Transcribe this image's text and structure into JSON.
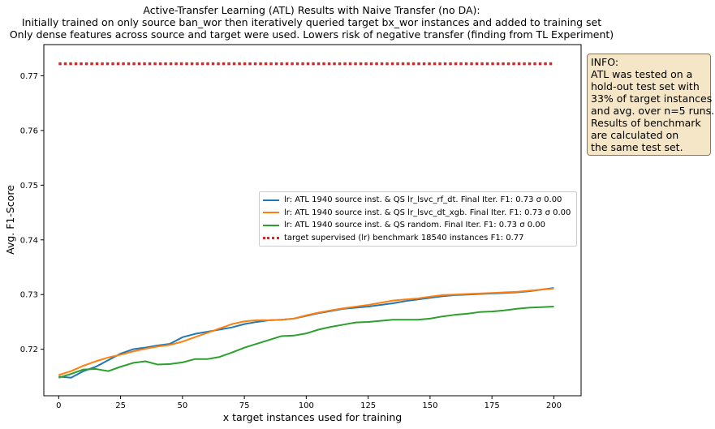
{
  "chart_data": {
    "type": "line",
    "title_lines": [
      "Active-Transfer Learning (ATL) Results with Naive Transfer (no DA):",
      "Initially trained on only source ban_wor then iteratively queried target bx_wor instances and added to training set",
      "Only dense features across source and target were used. Lowers risk of negative transfer (finding from TL Experiment)"
    ],
    "xlabel": "x target instances used for training",
    "ylabel": "Avg. F1-Score",
    "xlim": [
      -6,
      211
    ],
    "ylim": [
      0.7115,
      0.7757
    ],
    "xticks": [
      0,
      25,
      50,
      75,
      100,
      125,
      150,
      175,
      200
    ],
    "xtick_labels": [
      "0",
      "25",
      "50",
      "75",
      "100",
      "125",
      "150",
      "175",
      "200"
    ],
    "yticks": [
      0.72,
      0.73,
      0.74,
      0.75,
      0.76,
      0.77
    ],
    "ytick_labels": [
      "0.72",
      "0.73",
      "0.74",
      "0.75",
      "0.76",
      "0.77"
    ],
    "grid": false,
    "legend_position": "center-right",
    "x": [
      0,
      5,
      10,
      15,
      20,
      25,
      30,
      35,
      40,
      45,
      50,
      55,
      60,
      65,
      70,
      75,
      80,
      85,
      90,
      95,
      100,
      105,
      110,
      115,
      120,
      125,
      130,
      135,
      140,
      145,
      150,
      155,
      160,
      165,
      170,
      175,
      180,
      185,
      190,
      195,
      200
    ],
    "series": [
      {
        "name": "lr: ATL 1940 source inst. & QS lr_lsvc_rf_dt. Final Iter. F1: 0.73 σ 0.00",
        "color": "#1f77b4",
        "style": "solid",
        "values": [
          0.715,
          0.7148,
          0.716,
          0.7168,
          0.718,
          0.7192,
          0.72,
          0.7203,
          0.7207,
          0.721,
          0.7222,
          0.7228,
          0.7232,
          0.7236,
          0.724,
          0.7246,
          0.725,
          0.7253,
          0.7254,
          0.7256,
          0.7261,
          0.7266,
          0.727,
          0.7274,
          0.7276,
          0.7278,
          0.7281,
          0.7284,
          0.7288,
          0.7291,
          0.7294,
          0.7297,
          0.7299,
          0.73,
          0.7301,
          0.7302,
          0.7303,
          0.7304,
          0.7306,
          0.7309,
          0.7312
        ]
      },
      {
        "name": "lr: ATL 1940 source inst. & QS lr_lsvc_dt_xgb. Final Iter. F1: 0.73 σ 0.00",
        "color": "#ff7f0e",
        "style": "solid",
        "values": [
          0.7153,
          0.716,
          0.717,
          0.7178,
          0.7185,
          0.719,
          0.7196,
          0.7201,
          0.7205,
          0.7208,
          0.7214,
          0.7222,
          0.723,
          0.7238,
          0.7246,
          0.7251,
          0.7253,
          0.7253,
          0.7254,
          0.7256,
          0.7262,
          0.7267,
          0.7271,
          0.7275,
          0.7278,
          0.7281,
          0.7285,
          0.7289,
          0.7291,
          0.7293,
          0.7296,
          0.7299,
          0.73,
          0.7301,
          0.7302,
          0.7303,
          0.7304,
          0.7305,
          0.7307,
          0.7309,
          0.7311
        ]
      },
      {
        "name": "lr: ATL 1940 source inst. & QS random. Final Iter. F1: 0.73 σ 0.00",
        "color": "#2ca02c",
        "style": "solid",
        "values": [
          0.7148,
          0.7155,
          0.7163,
          0.7164,
          0.716,
          0.7168,
          0.7175,
          0.7178,
          0.7172,
          0.7173,
          0.7176,
          0.7182,
          0.7182,
          0.7186,
          0.7194,
          0.7203,
          0.721,
          0.7217,
          0.7224,
          0.7225,
          0.7229,
          0.7236,
          0.7241,
          0.7245,
          0.7249,
          0.725,
          0.7252,
          0.7254,
          0.7254,
          0.7254,
          0.7256,
          0.726,
          0.7263,
          0.7265,
          0.7268,
          0.7269,
          0.7271,
          0.7274,
          0.7276,
          0.7277,
          0.7278
        ]
      },
      {
        "name": "target supervised (lr) benchmark 18540 instances F1: 0.77",
        "color": "#d62728",
        "style": "dotted",
        "values": [
          0.7722,
          0.7722,
          0.7722,
          0.7722,
          0.7722,
          0.7722,
          0.7722,
          0.7722,
          0.7722,
          0.7722,
          0.7722,
          0.7722,
          0.7722,
          0.7722,
          0.7722,
          0.7722,
          0.7722,
          0.7722,
          0.7722,
          0.7722,
          0.7722,
          0.7722,
          0.7722,
          0.7722,
          0.7722,
          0.7722,
          0.7722,
          0.7722,
          0.7722,
          0.7722,
          0.7722,
          0.7722,
          0.7722,
          0.7722,
          0.7722,
          0.7722,
          0.7722,
          0.7722,
          0.7722,
          0.7722,
          0.7722
        ]
      }
    ]
  },
  "info_box": {
    "lines": [
      "INFO:",
      "ATL was tested on a",
      "hold-out test set with",
      "33% of target instances",
      "and avg. over n=5 runs.",
      "Results of benchmark",
      "are calculated on",
      "the same test set."
    ],
    "background": "#f5e6c8",
    "border": "#8a7755"
  }
}
